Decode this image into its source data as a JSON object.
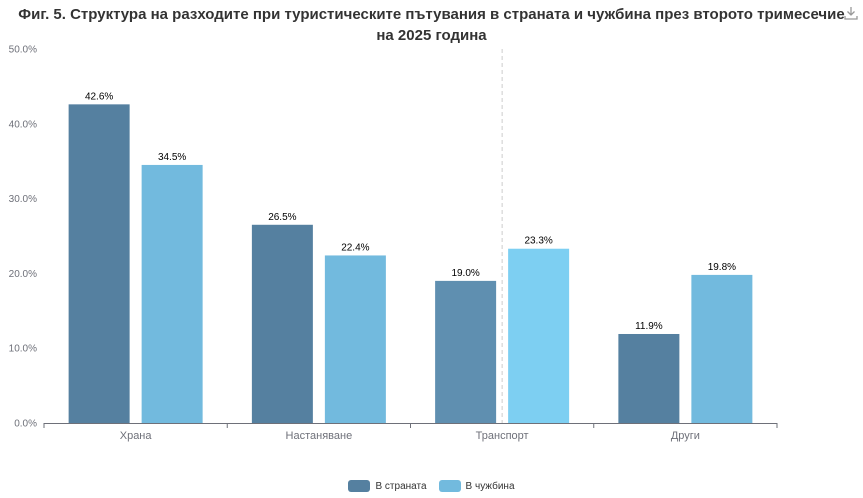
{
  "title_lines": [
    "Фиг. 5. Структура на разходите при туристическите пътувания в страната и чужбина през второто тримесечие",
    "на 2025 година"
  ],
  "download_icon": "download-icon",
  "chart_data": {
    "type": "bar",
    "title": "Фиг. 5. Структура на разходите при туристическите пътувания в страната и чужбина през второто тримесечие на 2025 година",
    "categories": [
      "Храна",
      "Настаняване",
      "Транспорт",
      "Други"
    ],
    "series": [
      {
        "name": "В страната",
        "values": [
          42.6,
          26.5,
          19.0,
          11.9
        ],
        "color": "#5580a0"
      },
      {
        "name": "В чужбина",
        "values": [
          34.5,
          22.4,
          23.3,
          19.8
        ],
        "color": "#72bade"
      }
    ],
    "y_ticks": [
      "0.0%",
      "10.0%",
      "20.0%",
      "30.0%",
      "40.0%",
      "50.0%"
    ],
    "data_labels": [
      [
        "42.6%",
        "26.5%",
        "19.0%",
        "11.9%"
      ],
      [
        "34.5%",
        "22.4%",
        "23.3%",
        "19.8%"
      ]
    ],
    "ylim": [
      0,
      50
    ],
    "legend_position": "bottom-center",
    "highlighted_category": "Транспорт",
    "highlight_colors": [
      "#5f8fb0",
      "#7dcff2"
    ],
    "grid": false
  }
}
